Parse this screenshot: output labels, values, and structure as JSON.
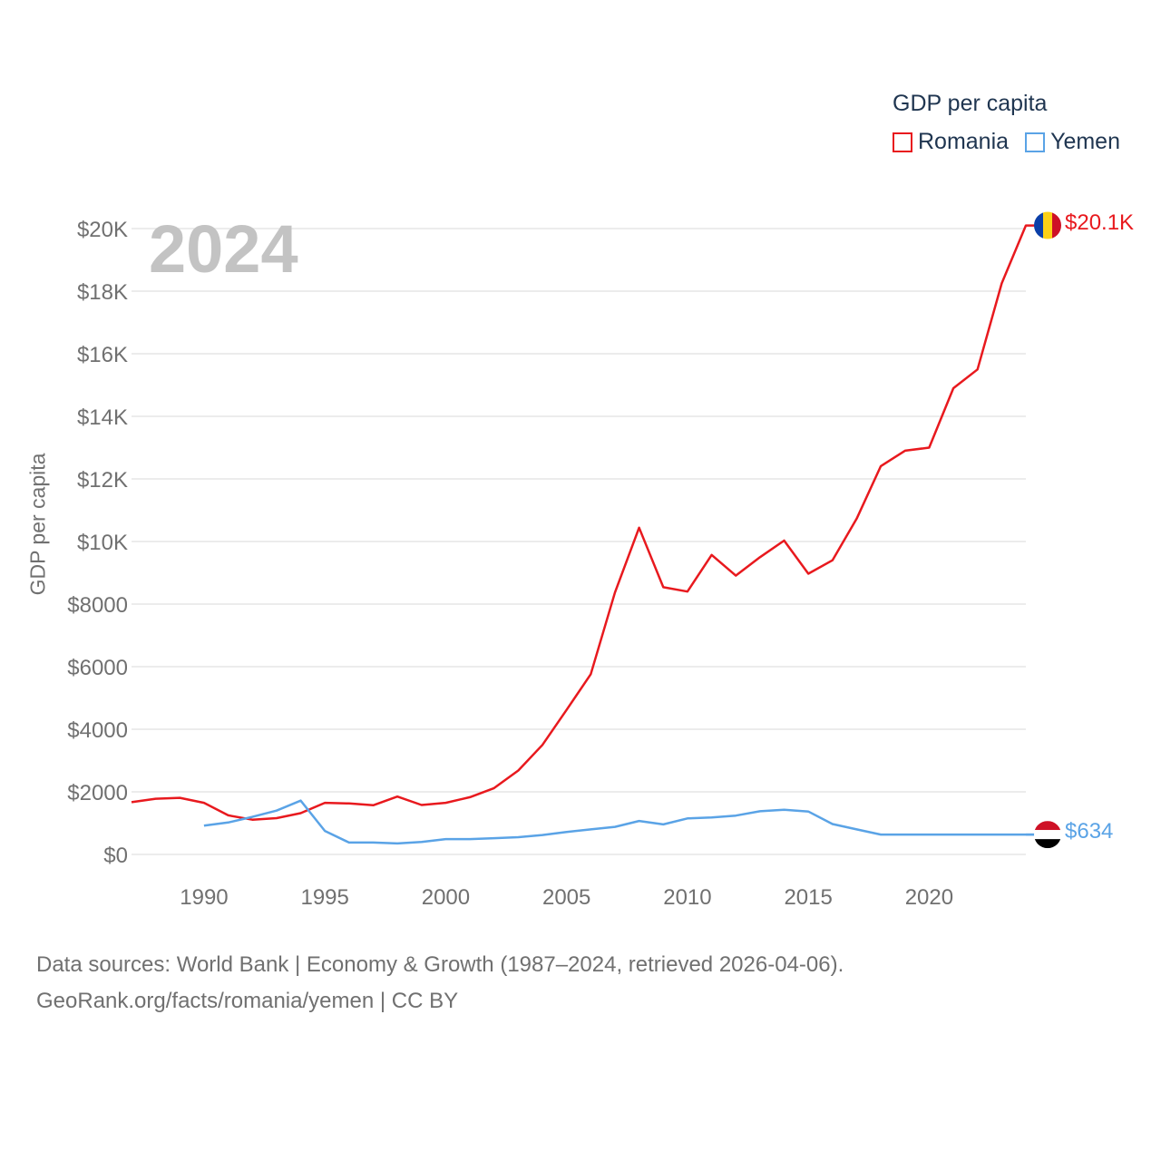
{
  "legend": {
    "title": "GDP per capita",
    "items": [
      {
        "name": "Romania",
        "color": "#e8191e"
      },
      {
        "name": "Yemen",
        "color": "#5aa3e6"
      }
    ]
  },
  "year_label": "2024",
  "end_labels": {
    "romania": "$20.1K",
    "yemen": "$634"
  },
  "source": {
    "line1": "Data sources: World Bank | Economy & Growth (1987–2024, retrieved 2026-04-06).",
    "line2": "GeoRank.org/facts/romania/yemen | CC BY"
  },
  "chart_data": {
    "type": "line",
    "title": "GDP per capita",
    "xlabel": "",
    "ylabel": "GDP per capita",
    "xlim": [
      1987,
      2024
    ],
    "ylim": [
      0,
      20000
    ],
    "x_ticks": [
      1990,
      1995,
      2000,
      2005,
      2010,
      2015,
      2020
    ],
    "y_ticks": [
      0,
      2000,
      4000,
      6000,
      8000,
      10000,
      12000,
      14000,
      16000,
      18000,
      20000
    ],
    "y_tick_labels": [
      "$0",
      "$2000",
      "$4000",
      "$6000",
      "$8000",
      "$10K",
      "$12K",
      "$14K",
      "$16K",
      "$18K",
      "$20K"
    ],
    "grid": true,
    "series": [
      {
        "name": "Romania",
        "color": "#e8191e",
        "x": [
          1987,
          1988,
          1989,
          1990,
          1991,
          1992,
          1993,
          1994,
          1995,
          1996,
          1997,
          1998,
          1999,
          2000,
          2001,
          2002,
          2003,
          2004,
          2005,
          2006,
          2007,
          2008,
          2009,
          2010,
          2011,
          2012,
          2013,
          2014,
          2015,
          2016,
          2017,
          2018,
          2019,
          2020,
          2021,
          2022,
          2023,
          2024
        ],
        "y": [
          1670,
          1780,
          1810,
          1650,
          1250,
          1110,
          1160,
          1320,
          1650,
          1630,
          1570,
          1850,
          1580,
          1650,
          1830,
          2120,
          2680,
          3500,
          4620,
          5760,
          8370,
          10440,
          8540,
          8400,
          9570,
          8910,
          9500,
          10030,
          8970,
          9400,
          10730,
          12410,
          12900,
          13000,
          14900,
          15500,
          18250,
          20100
        ]
      },
      {
        "name": "Yemen",
        "color": "#5aa3e6",
        "x": [
          1990,
          1991,
          1992,
          1993,
          1994,
          1995,
          1996,
          1997,
          1998,
          1999,
          2000,
          2001,
          2002,
          2003,
          2004,
          2005,
          2006,
          2007,
          2008,
          2009,
          2010,
          2011,
          2012,
          2013,
          2014,
          2015,
          2016,
          2017,
          2018,
          2019,
          2020,
          2021,
          2022,
          2023,
          2024
        ],
        "y": [
          920,
          1020,
          1200,
          1400,
          1720,
          750,
          380,
          380,
          350,
          400,
          490,
          490,
          520,
          550,
          620,
          720,
          800,
          880,
          1070,
          960,
          1150,
          1180,
          1240,
          1380,
          1430,
          1370,
          970,
          800,
          634,
          634,
          634,
          634,
          634,
          634,
          634
        ]
      }
    ]
  }
}
